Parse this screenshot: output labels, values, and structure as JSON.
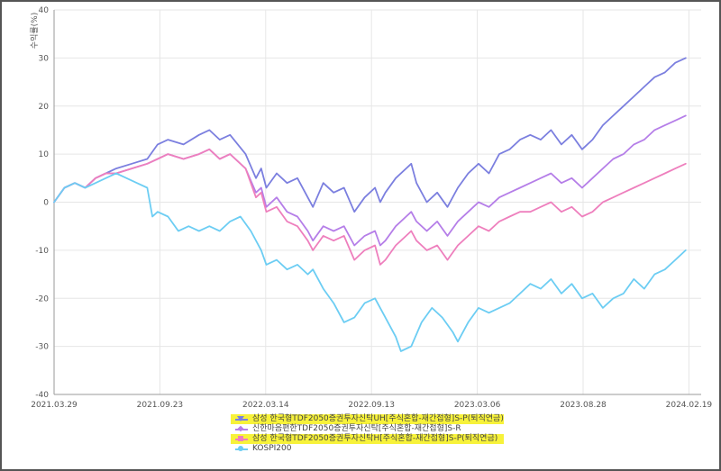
{
  "chart_data": {
    "type": "line",
    "ylabel": "수익률(%)",
    "ylim": [
      -40,
      40
    ],
    "yticks": [
      40,
      30,
      20,
      10,
      0,
      -10,
      -20,
      -30,
      -40
    ],
    "xticks": [
      "2021.03.29",
      "2021.09.23",
      "2022.03.14",
      "2022.09.13",
      "2023.03.06",
      "2023.08.28",
      "2024.02.19"
    ],
    "grid": true,
    "legend_position": "bottom",
    "series": [
      {
        "name": "삼성 한국형TDF2050증권투자신탁UH[주식혼합-재간접형]S-P(퇴직연금)",
        "color": "#7b7fdf",
        "marker": "triangle-down",
        "highlight": true,
        "values": [
          [
            0,
            0
          ],
          [
            2,
            3
          ],
          [
            4,
            4
          ],
          [
            6,
            3
          ],
          [
            8,
            5
          ],
          [
            10,
            6
          ],
          [
            12,
            7
          ],
          [
            15,
            8
          ],
          [
            18,
            9
          ],
          [
            20,
            12
          ],
          [
            22,
            13
          ],
          [
            25,
            12
          ],
          [
            28,
            14
          ],
          [
            30,
            15
          ],
          [
            32,
            13
          ],
          [
            34,
            14
          ],
          [
            37,
            10
          ],
          [
            39,
            5
          ],
          [
            40,
            7
          ],
          [
            41,
            3
          ],
          [
            43,
            6
          ],
          [
            45,
            4
          ],
          [
            47,
            5
          ],
          [
            49,
            1
          ],
          [
            50,
            -1
          ],
          [
            52,
            4
          ],
          [
            54,
            2
          ],
          [
            56,
            3
          ],
          [
            58,
            -2
          ],
          [
            60,
            1
          ],
          [
            62,
            3
          ],
          [
            63,
            0
          ],
          [
            64,
            2
          ],
          [
            66,
            5
          ],
          [
            68,
            7
          ],
          [
            69,
            8
          ],
          [
            70,
            4
          ],
          [
            72,
            0
          ],
          [
            74,
            2
          ],
          [
            76,
            -1
          ],
          [
            78,
            3
          ],
          [
            80,
            6
          ],
          [
            82,
            8
          ],
          [
            84,
            6
          ],
          [
            86,
            10
          ],
          [
            88,
            11
          ],
          [
            90,
            13
          ],
          [
            92,
            14
          ],
          [
            94,
            13
          ],
          [
            96,
            15
          ],
          [
            98,
            12
          ],
          [
            100,
            14
          ],
          [
            102,
            11
          ],
          [
            104,
            13
          ],
          [
            106,
            16
          ],
          [
            108,
            18
          ],
          [
            110,
            20
          ],
          [
            112,
            22
          ],
          [
            114,
            24
          ],
          [
            116,
            26
          ],
          [
            118,
            27
          ],
          [
            120,
            29
          ],
          [
            122,
            30
          ]
        ]
      },
      {
        "name": "신한마음편한TDF2050증권투자신탁[주식혼합-재간접형]S-R",
        "color": "#b57ee8",
        "marker": "diamond",
        "highlight": false,
        "values": [
          [
            0,
            0
          ],
          [
            2,
            3
          ],
          [
            4,
            4
          ],
          [
            6,
            3
          ],
          [
            8,
            5
          ],
          [
            10,
            6
          ],
          [
            12,
            6
          ],
          [
            15,
            7
          ],
          [
            18,
            8
          ],
          [
            20,
            9
          ],
          [
            22,
            10
          ],
          [
            25,
            9
          ],
          [
            28,
            10
          ],
          [
            30,
            11
          ],
          [
            32,
            9
          ],
          [
            34,
            10
          ],
          [
            37,
            7
          ],
          [
            39,
            2
          ],
          [
            40,
            3
          ],
          [
            41,
            -1
          ],
          [
            43,
            1
          ],
          [
            45,
            -2
          ],
          [
            47,
            -3
          ],
          [
            49,
            -6
          ],
          [
            50,
            -8
          ],
          [
            52,
            -5
          ],
          [
            54,
            -6
          ],
          [
            56,
            -5
          ],
          [
            58,
            -9
          ],
          [
            60,
            -7
          ],
          [
            62,
            -6
          ],
          [
            63,
            -9
          ],
          [
            64,
            -8
          ],
          [
            66,
            -5
          ],
          [
            68,
            -3
          ],
          [
            69,
            -2
          ],
          [
            70,
            -4
          ],
          [
            72,
            -6
          ],
          [
            74,
            -4
          ],
          [
            76,
            -7
          ],
          [
            78,
            -4
          ],
          [
            80,
            -2
          ],
          [
            82,
            0
          ],
          [
            84,
            -1
          ],
          [
            86,
            1
          ],
          [
            88,
            2
          ],
          [
            90,
            3
          ],
          [
            92,
            4
          ],
          [
            94,
            5
          ],
          [
            96,
            6
          ],
          [
            98,
            4
          ],
          [
            100,
            5
          ],
          [
            102,
            3
          ],
          [
            104,
            5
          ],
          [
            106,
            7
          ],
          [
            108,
            9
          ],
          [
            110,
            10
          ],
          [
            112,
            12
          ],
          [
            114,
            13
          ],
          [
            116,
            15
          ],
          [
            118,
            16
          ],
          [
            120,
            17
          ],
          [
            122,
            18
          ]
        ]
      },
      {
        "name": "삼성 한국형TDF2050증권투자신탁H[주식혼합-재간접형]S-P(퇴직연금)",
        "color": "#ee7fbd",
        "marker": "square",
        "highlight": true,
        "values": [
          [
            0,
            0
          ],
          [
            2,
            3
          ],
          [
            4,
            4
          ],
          [
            6,
            3
          ],
          [
            8,
            5
          ],
          [
            10,
            6
          ],
          [
            12,
            6
          ],
          [
            15,
            7
          ],
          [
            18,
            8
          ],
          [
            20,
            9
          ],
          [
            22,
            10
          ],
          [
            25,
            9
          ],
          [
            28,
            10
          ],
          [
            30,
            11
          ],
          [
            32,
            9
          ],
          [
            34,
            10
          ],
          [
            37,
            7
          ],
          [
            39,
            1
          ],
          [
            40,
            2
          ],
          [
            41,
            -2
          ],
          [
            43,
            -1
          ],
          [
            45,
            -4
          ],
          [
            47,
            -5
          ],
          [
            49,
            -8
          ],
          [
            50,
            -10
          ],
          [
            52,
            -7
          ],
          [
            54,
            -8
          ],
          [
            56,
            -7
          ],
          [
            58,
            -12
          ],
          [
            60,
            -10
          ],
          [
            62,
            -9
          ],
          [
            63,
            -13
          ],
          [
            64,
            -12
          ],
          [
            66,
            -9
          ],
          [
            68,
            -7
          ],
          [
            69,
            -6
          ],
          [
            70,
            -8
          ],
          [
            72,
            -10
          ],
          [
            74,
            -9
          ],
          [
            76,
            -12
          ],
          [
            78,
            -9
          ],
          [
            80,
            -7
          ],
          [
            82,
            -5
          ],
          [
            84,
            -6
          ],
          [
            86,
            -4
          ],
          [
            88,
            -3
          ],
          [
            90,
            -2
          ],
          [
            92,
            -2
          ],
          [
            94,
            -1
          ],
          [
            96,
            0
          ],
          [
            98,
            -2
          ],
          [
            100,
            -1
          ],
          [
            102,
            -3
          ],
          [
            104,
            -2
          ],
          [
            106,
            0
          ],
          [
            108,
            1
          ],
          [
            110,
            2
          ],
          [
            112,
            3
          ],
          [
            114,
            4
          ],
          [
            116,
            5
          ],
          [
            118,
            6
          ],
          [
            120,
            7
          ],
          [
            122,
            8
          ]
        ]
      },
      {
        "name": "KOSPI200",
        "color": "#6ccdf3",
        "marker": "circle",
        "highlight": false,
        "values": [
          [
            0,
            0
          ],
          [
            2,
            3
          ],
          [
            4,
            4
          ],
          [
            6,
            3
          ],
          [
            8,
            4
          ],
          [
            10,
            5
          ],
          [
            12,
            6
          ],
          [
            14,
            5
          ],
          [
            16,
            4
          ],
          [
            18,
            3
          ],
          [
            19,
            -3
          ],
          [
            20,
            -2
          ],
          [
            22,
            -3
          ],
          [
            24,
            -6
          ],
          [
            26,
            -5
          ],
          [
            28,
            -6
          ],
          [
            30,
            -5
          ],
          [
            32,
            -6
          ],
          [
            34,
            -4
          ],
          [
            36,
            -3
          ],
          [
            38,
            -6
          ],
          [
            40,
            -10
          ],
          [
            41,
            -13
          ],
          [
            43,
            -12
          ],
          [
            45,
            -14
          ],
          [
            47,
            -13
          ],
          [
            49,
            -15
          ],
          [
            50,
            -14
          ],
          [
            52,
            -18
          ],
          [
            54,
            -21
          ],
          [
            56,
            -25
          ],
          [
            58,
            -24
          ],
          [
            60,
            -21
          ],
          [
            62,
            -20
          ],
          [
            64,
            -24
          ],
          [
            66,
            -28
          ],
          [
            67,
            -31
          ],
          [
            69,
            -30
          ],
          [
            71,
            -25
          ],
          [
            73,
            -22
          ],
          [
            75,
            -24
          ],
          [
            77,
            -27
          ],
          [
            78,
            -29
          ],
          [
            80,
            -25
          ],
          [
            82,
            -22
          ],
          [
            84,
            -23
          ],
          [
            86,
            -22
          ],
          [
            88,
            -21
          ],
          [
            90,
            -19
          ],
          [
            92,
            -17
          ],
          [
            94,
            -18
          ],
          [
            96,
            -16
          ],
          [
            98,
            -19
          ],
          [
            100,
            -17
          ],
          [
            102,
            -20
          ],
          [
            104,
            -19
          ],
          [
            106,
            -22
          ],
          [
            108,
            -20
          ],
          [
            110,
            -19
          ],
          [
            112,
            -16
          ],
          [
            114,
            -18
          ],
          [
            116,
            -15
          ],
          [
            118,
            -14
          ],
          [
            120,
            -12
          ],
          [
            122,
            -10
          ]
        ]
      }
    ]
  }
}
